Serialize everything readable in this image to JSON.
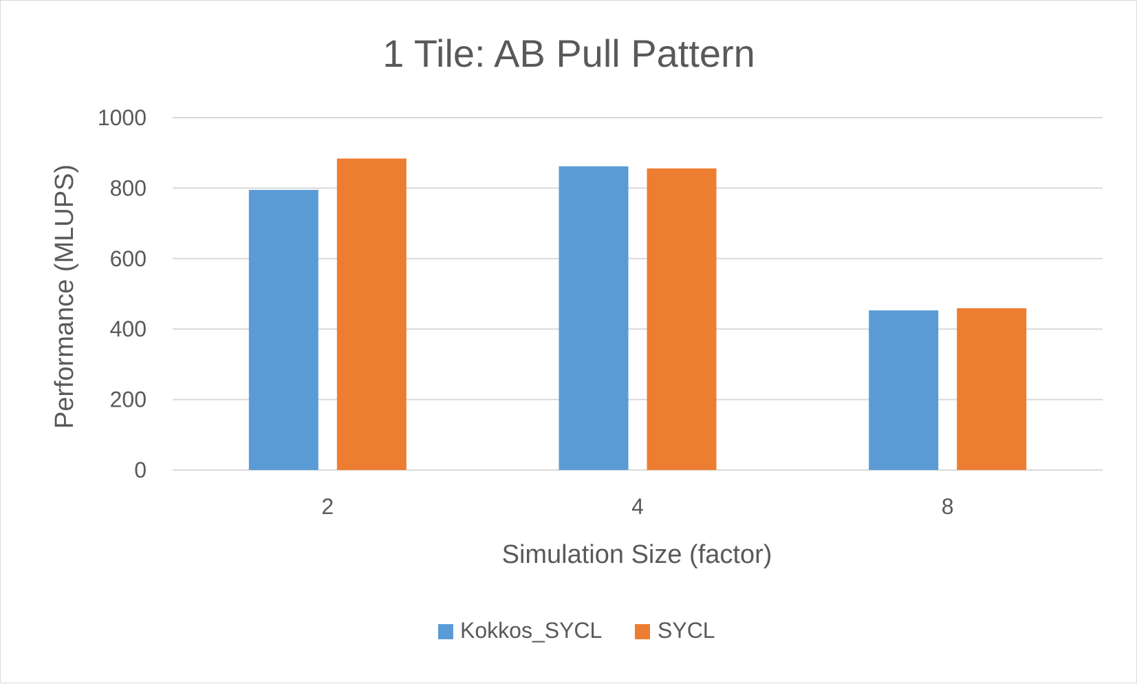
{
  "chart_data": {
    "type": "bar",
    "title": "1 Tile: AB Pull Pattern",
    "xlabel": "Simulation Size (factor)",
    "ylabel": "Performance (MLUPS)",
    "categories": [
      "2",
      "4",
      "8"
    ],
    "series": [
      {
        "name": "Kokkos_SYCL",
        "values": [
          795,
          862,
          453
        ],
        "color": "#5b9bd5"
      },
      {
        "name": "SYCL",
        "values": [
          884,
          856,
          459
        ],
        "color": "#ed7d31"
      }
    ],
    "ylim": [
      0,
      1000
    ],
    "yticks": [
      0,
      200,
      400,
      600,
      800,
      1000
    ],
    "grid": true,
    "legend_position": "bottom"
  }
}
